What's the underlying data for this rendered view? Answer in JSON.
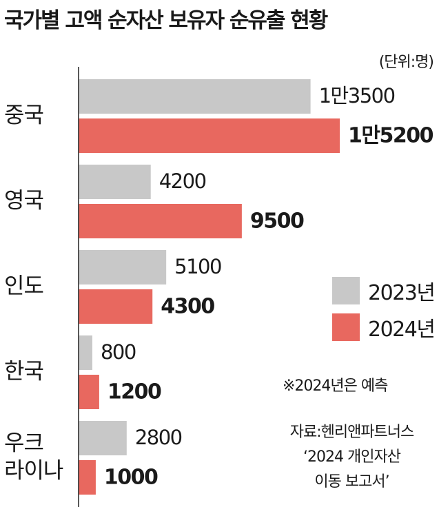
{
  "chart_data": {
    "type": "bar",
    "orientation": "horizontal",
    "title": "국가별 고액 순자산 보유자 순유출 현황",
    "unit_label": "(단위:명)",
    "categories": [
      [
        "중국"
      ],
      [
        "영국"
      ],
      [
        "인도"
      ],
      [
        "한국"
      ],
      [
        "우크",
        "라이나"
      ]
    ],
    "series": [
      {
        "name": "2023년",
        "color": "#c8c8c8",
        "values": [
          13500,
          4200,
          5100,
          800,
          2800
        ],
        "value_labels": [
          "1만3500",
          "4200",
          "5100",
          "800",
          "2800"
        ]
      },
      {
        "name": "2024년",
        "color": "#e8685f",
        "values": [
          15200,
          9500,
          4300,
          1200,
          1000
        ],
        "value_labels": [
          "1만5200",
          "9500",
          "4300",
          "1200",
          "1000"
        ]
      }
    ],
    "legend_position": "right",
    "grid": false,
    "notes": [
      "※2024년은 예측"
    ],
    "source": [
      "자료:헨리앤파트너스",
      "‘2024 개인자산",
      "이동 보고서’"
    ]
  }
}
